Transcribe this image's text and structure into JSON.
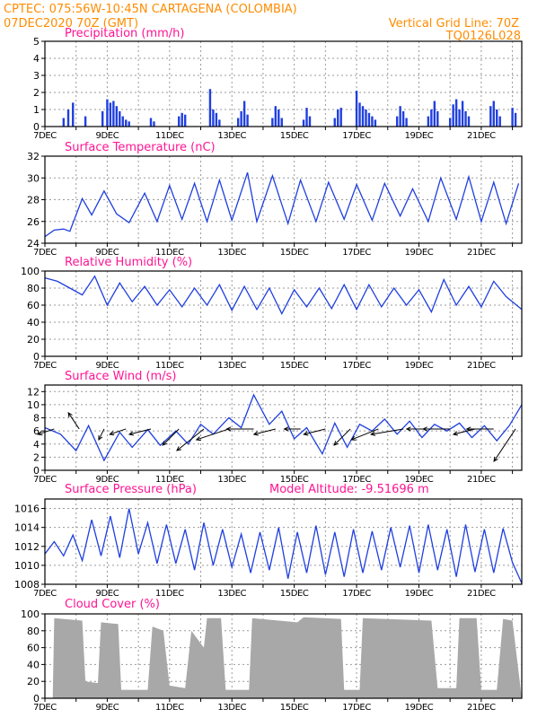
{
  "header": {
    "line1": "CPTEC:  075:56W-10:45N  CARTAGENA (COLOMBIA)",
    "line2": "07DEC2020 70Z (GMT)",
    "grid_note": "Vertical Grid Line: 70Z",
    "code": "TQ0126L028"
  },
  "colors": {
    "header": "#ff8c00",
    "title": "#ff1493",
    "line": "#1f3fe0",
    "bar": "#1f3fe0",
    "cloud": "#a8a8a8",
    "grid": "#9a9a9a"
  },
  "chart_data": [
    {
      "id": "precip",
      "type": "bar",
      "title": "Precipitation (mm/h)",
      "ylim": [
        0,
        5
      ],
      "yticks": [
        0,
        1,
        2,
        3,
        4,
        5
      ],
      "xlabels": [
        "7DEC",
        "9DEC",
        "11DEC",
        "13DEC",
        "15DEC",
        "17DEC",
        "19DEC",
        "21DEC"
      ],
      "x_range_days": [
        7,
        22.3
      ],
      "x": [
        7.6,
        7.75,
        7.9,
        8.3,
        8.85,
        9.0,
        9.1,
        9.2,
        9.3,
        9.4,
        9.5,
        9.6,
        9.7,
        10.4,
        10.5,
        11.3,
        11.4,
        11.5,
        12.3,
        12.4,
        12.5,
        12.6,
        13.2,
        13.3,
        13.4,
        13.5,
        14.3,
        14.4,
        14.5,
        14.6,
        15.3,
        15.4,
        15.5,
        16.3,
        16.4,
        16.5,
        17.0,
        17.1,
        17.2,
        17.3,
        17.4,
        17.5,
        17.6,
        18.3,
        18.4,
        18.5,
        18.6,
        19.3,
        19.4,
        19.5,
        19.6,
        20.0,
        20.1,
        20.2,
        20.3,
        20.4,
        20.5,
        20.6,
        21.3,
        21.4,
        21.5,
        21.6,
        22.0,
        22.1
      ],
      "values": [
        0.5,
        1.0,
        1.4,
        0.6,
        0.9,
        1.6,
        1.4,
        1.5,
        1.2,
        0.9,
        0.6,
        0.4,
        0.3,
        0.5,
        0.3,
        0.6,
        0.8,
        0.7,
        2.2,
        1.0,
        0.8,
        0.4,
        0.5,
        0.9,
        1.5,
        0.7,
        0.5,
        1.2,
        1.0,
        0.5,
        0.4,
        1.1,
        0.6,
        0.5,
        1.0,
        1.1,
        2.1,
        1.4,
        1.2,
        1.0,
        0.8,
        0.6,
        0.4,
        0.6,
        1.2,
        0.9,
        0.5,
        0.6,
        1.0,
        1.5,
        0.9,
        0.5,
        1.3,
        1.6,
        1.0,
        1.5,
        0.9,
        0.6,
        1.2,
        1.5,
        1.0,
        0.6,
        1.1,
        0.8
      ]
    },
    {
      "id": "temp",
      "type": "line",
      "title": "Surface Temperature (nC)",
      "ylim": [
        24,
        32
      ],
      "yticks": [
        24,
        26,
        28,
        30,
        32
      ],
      "xlabels": [
        "7DEC",
        "9DEC",
        "11DEC",
        "13DEC",
        "15DEC",
        "17DEC",
        "19DEC",
        "21DEC"
      ],
      "x_range_days": [
        7,
        22.3
      ],
      "x": [
        7.0,
        7.3,
        7.6,
        7.8,
        8.2,
        8.5,
        8.9,
        9.3,
        9.7,
        10.2,
        10.6,
        11.0,
        11.4,
        11.8,
        12.2,
        12.6,
        13.0,
        13.5,
        13.8,
        14.3,
        14.8,
        15.2,
        15.7,
        16.1,
        16.6,
        17.0,
        17.5,
        17.9,
        18.4,
        18.8,
        19.3,
        19.7,
        20.2,
        20.6,
        21.0,
        21.4,
        21.8,
        22.2
      ],
      "values": [
        24.6,
        25.2,
        25.3,
        25.1,
        28.1,
        26.6,
        28.8,
        26.7,
        25.9,
        28.6,
        26.0,
        29.3,
        26.2,
        29.5,
        26.0,
        29.8,
        26.1,
        30.5,
        26.0,
        30.2,
        25.8,
        29.8,
        26.0,
        29.6,
        26.2,
        29.4,
        26.1,
        29.5,
        26.5,
        29.0,
        26.0,
        30.0,
        26.2,
        30.1,
        26.0,
        29.6,
        25.8,
        29.5
      ]
    },
    {
      "id": "rh",
      "type": "line",
      "title": "Relative Humidity (%)",
      "ylim": [
        0,
        100
      ],
      "yticks": [
        0,
        20,
        40,
        60,
        80,
        100
      ],
      "xlabels": [
        "7DEC",
        "9DEC",
        "11DEC",
        "13DEC",
        "15DEC",
        "17DEC",
        "19DEC",
        "21DEC"
      ],
      "x_range_days": [
        7,
        22.3
      ],
      "x": [
        7.0,
        7.4,
        7.8,
        8.2,
        8.6,
        9.0,
        9.4,
        9.8,
        10.2,
        10.6,
        11.0,
        11.4,
        11.8,
        12.2,
        12.6,
        13.0,
        13.4,
        13.8,
        14.2,
        14.6,
        15.0,
        15.4,
        15.8,
        16.2,
        16.6,
        17.0,
        17.4,
        17.8,
        18.2,
        18.6,
        19.0,
        19.4,
        19.8,
        20.2,
        20.6,
        21.0,
        21.4,
        21.8,
        22.3
      ],
      "values": [
        92,
        88,
        80,
        72,
        94,
        60,
        86,
        64,
        82,
        60,
        78,
        58,
        80,
        60,
        84,
        54,
        82,
        55,
        80,
        50,
        78,
        58,
        80,
        56,
        84,
        55,
        84,
        58,
        80,
        60,
        78,
        52,
        90,
        60,
        82,
        58,
        88,
        70,
        55
      ]
    },
    {
      "id": "wind",
      "type": "line",
      "title": "Surface Wind (m/s)",
      "ylim": [
        0,
        13
      ],
      "yticks": [
        0,
        2,
        4,
        6,
        8,
        10,
        12
      ],
      "xlabels": [
        "7DEC",
        "9DEC",
        "11DEC",
        "13DEC",
        "15DEC",
        "17DEC",
        "19DEC",
        "21DEC"
      ],
      "x_range_days": [
        7,
        22.3
      ],
      "x": [
        7.0,
        7.5,
        8.0,
        8.4,
        8.9,
        9.4,
        9.8,
        10.3,
        10.7,
        11.2,
        11.6,
        12.0,
        12.4,
        12.9,
        13.3,
        13.7,
        14.2,
        14.6,
        15.0,
        15.4,
        15.9,
        16.3,
        16.7,
        17.1,
        17.5,
        17.9,
        18.3,
        18.7,
        19.1,
        19.5,
        19.9,
        20.3,
        20.7,
        21.1,
        21.5,
        21.9,
        22.3
      ],
      "values": [
        6.5,
        5.5,
        3.0,
        6.8,
        1.5,
        5.8,
        3.5,
        6.2,
        3.8,
        6.0,
        4.0,
        7.0,
        5.5,
        8.0,
        6.5,
        11.5,
        7.0,
        9.0,
        4.8,
        6.5,
        2.5,
        7.2,
        3.5,
        7.0,
        6.0,
        7.8,
        5.5,
        7.5,
        5.0,
        7.0,
        6.0,
        7.2,
        5.0,
        6.8,
        4.5,
        6.8,
        10.0
      ],
      "vectors": {
        "x": [
          7.3,
          8.1,
          8.9,
          9.6,
          10.4,
          11.3,
          12.1,
          12.9,
          13.7,
          14.4,
          15.2,
          16.0,
          16.8,
          17.7,
          18.5,
          19.3,
          20.0,
          20.8,
          21.4,
          22.1
        ],
        "u": [
          -3,
          -2,
          -1,
          -3,
          -4,
          -3,
          -5,
          -6,
          -5,
          -4,
          -3,
          -4,
          -3,
          -5,
          -6,
          -4,
          -5,
          -4,
          -5,
          -4
        ],
        "v": [
          -1,
          3,
          -2,
          -1,
          -1,
          -3,
          -4,
          -2,
          0,
          -1,
          0,
          -1,
          -3,
          -2,
          -1,
          0,
          0,
          -1,
          0,
          -6
        ]
      }
    },
    {
      "id": "press",
      "type": "line",
      "title": "Surface Pressure (hPa)",
      "annotation": "Model Altitude: -9.51696 m",
      "ylim": [
        1008,
        1017
      ],
      "yticks": [
        1008,
        1010,
        1012,
        1014,
        1016
      ],
      "xlabels": [
        "7DEC",
        "9DEC",
        "11DEC",
        "13DEC",
        "15DEC",
        "17DEC",
        "19DEC",
        "21DEC"
      ],
      "x_range_days": [
        7,
        22.3
      ],
      "x": [
        7.0,
        7.3,
        7.6,
        7.9,
        8.2,
        8.5,
        8.8,
        9.1,
        9.4,
        9.7,
        10.0,
        10.3,
        10.6,
        10.9,
        11.2,
        11.5,
        11.8,
        12.1,
        12.4,
        12.7,
        13.0,
        13.3,
        13.6,
        13.9,
        14.2,
        14.5,
        14.8,
        15.1,
        15.4,
        15.7,
        16.0,
        16.3,
        16.6,
        16.9,
        17.2,
        17.5,
        17.8,
        18.1,
        18.4,
        18.7,
        19.0,
        19.3,
        19.6,
        19.9,
        20.2,
        20.5,
        20.8,
        21.1,
        21.4,
        21.7,
        22.0,
        22.3
      ],
      "values": [
        1011.2,
        1012.5,
        1011.0,
        1013.2,
        1010.5,
        1014.8,
        1011.0,
        1015.2,
        1010.8,
        1016.0,
        1011.2,
        1014.5,
        1010.2,
        1014.3,
        1010.2,
        1013.8,
        1009.5,
        1014.5,
        1010.0,
        1013.8,
        1009.8,
        1013.3,
        1009.2,
        1013.5,
        1009.5,
        1014.0,
        1008.6,
        1013.5,
        1009.2,
        1014.2,
        1009.0,
        1013.5,
        1008.8,
        1013.8,
        1009.2,
        1013.6,
        1009.5,
        1014.0,
        1009.8,
        1014.2,
        1009.2,
        1014.3,
        1009.5,
        1013.8,
        1008.8,
        1014.3,
        1009.3,
        1013.8,
        1009.2,
        1013.9,
        1010.3,
        1008.1
      ]
    },
    {
      "id": "cloud",
      "type": "area",
      "title": "Cloud Cover (%)",
      "ylim": [
        0,
        100
      ],
      "yticks": [
        0,
        20,
        40,
        60,
        80,
        100
      ],
      "xlabels": [
        "7DEC",
        "9DEC",
        "11DEC",
        "13DEC",
        "15DEC",
        "17DEC",
        "19DEC",
        "21DEC"
      ],
      "x_range_days": [
        7,
        22.3
      ],
      "x": [
        7.0,
        7.25,
        7.3,
        8.2,
        8.3,
        8.7,
        8.8,
        9.35,
        9.45,
        10.3,
        10.45,
        10.8,
        11.0,
        11.5,
        11.7,
        12.1,
        12.2,
        12.65,
        12.8,
        13.55,
        13.65,
        15.1,
        15.3,
        16.5,
        16.6,
        17.1,
        17.2,
        19.4,
        19.6,
        20.2,
        20.3,
        20.85,
        21.0,
        21.5,
        21.7,
        22.0,
        22.3
      ],
      "values": [
        0,
        0,
        95,
        92,
        20,
        18,
        90,
        88,
        10,
        10,
        85,
        80,
        15,
        12,
        80,
        60,
        95,
        95,
        10,
        10,
        95,
        90,
        96,
        94,
        10,
        10,
        95,
        92,
        12,
        12,
        95,
        95,
        10,
        10,
        94,
        92,
        0
      ]
    }
  ]
}
